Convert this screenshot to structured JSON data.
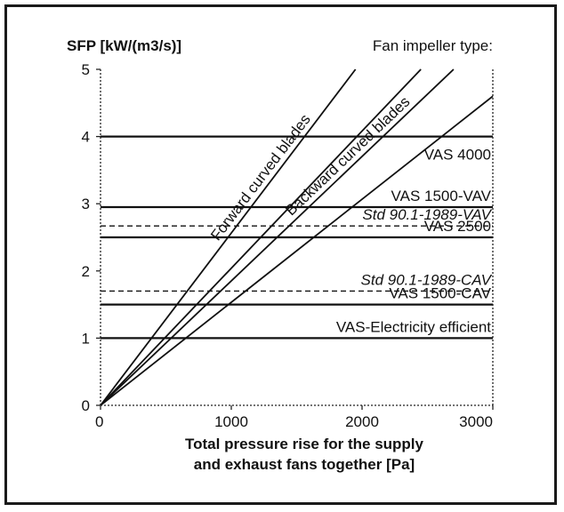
{
  "chart_data": {
    "type": "line",
    "ylabel": "SFP [kW/(m3/s)]",
    "xlabel_line1": "Total pressure rise for the supply",
    "xlabel_line2": "and exhaust fans together [Pa]",
    "legend_title": "Fan impeller type:",
    "xlim": [
      0,
      3000
    ],
    "ylim": [
      0,
      5
    ],
    "xticks": [
      "0",
      "1000",
      "2000",
      "3000"
    ],
    "yticks": [
      "0",
      "1",
      "2",
      "3",
      "4",
      "5"
    ],
    "grid": false,
    "impeller_lines": [
      {
        "label": "Forward curved blades",
        "x": [
          0,
          1950
        ],
        "y": [
          0,
          5.0
        ]
      },
      {
        "label": "",
        "x": [
          0,
          2450
        ],
        "y": [
          0,
          5.0
        ]
      },
      {
        "label": "Backward curved blades",
        "x": [
          0,
          2700
        ],
        "y": [
          0,
          5.0
        ]
      },
      {
        "label": "",
        "x": [
          0,
          3000
        ],
        "y": [
          0,
          4.6
        ]
      }
    ],
    "levels": [
      {
        "label": "VAS 4000",
        "y": 4.0,
        "style": "solid",
        "italic": false
      },
      {
        "label": "VAS 1500-VAV",
        "y": 2.95,
        "style": "solid",
        "italic": false
      },
      {
        "label": "Std 90.1-1989-VAV",
        "y": 2.67,
        "style": "dashed",
        "italic": true
      },
      {
        "label": "VAS 2500",
        "y": 2.5,
        "style": "solid",
        "italic": false
      },
      {
        "label": "Std 90.1-1989-CAV",
        "y": 1.7,
        "style": "dashed",
        "italic": true
      },
      {
        "label": "VAS 1500-CAV",
        "y": 1.5,
        "style": "solid",
        "italic": false
      },
      {
        "label": "VAS-Electricity efficient",
        "y": 1.0,
        "style": "solid",
        "italic": false
      }
    ]
  }
}
